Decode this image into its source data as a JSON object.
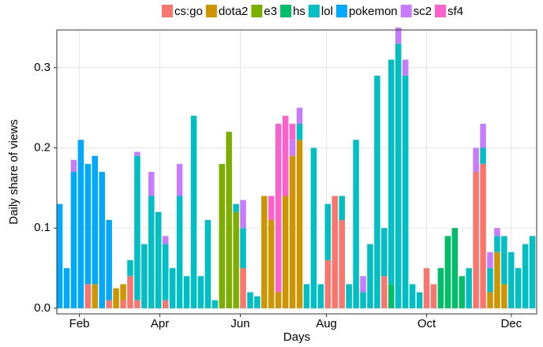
{
  "chart_data": {
    "type": "stacked_bar",
    "x_label": "Days",
    "y_label": "Daily share of views",
    "xlim": [
      0,
      340
    ],
    "ylim": [
      -0.007,
      0.347
    ],
    "xticks": [
      {
        "value": 16,
        "label": "Feb"
      },
      {
        "value": 73,
        "label": "Apr"
      },
      {
        "value": 130,
        "label": "Jun"
      },
      {
        "value": 191,
        "label": "Aug"
      },
      {
        "value": 262,
        "label": "Oct"
      },
      {
        "value": 322,
        "label": "Dec"
      }
    ],
    "yticks": [
      {
        "value": 0,
        "label": "0.0"
      },
      0.1,
      0.2,
      0.3
    ],
    "grid": true,
    "legend": "top",
    "x": [
      2,
      7,
      12,
      17,
      22,
      27,
      32,
      37,
      42,
      47,
      52,
      57,
      62,
      67,
      72,
      77,
      82,
      87,
      92,
      97,
      102,
      107,
      112,
      117,
      122,
      127,
      132,
      137,
      142,
      147,
      152,
      157,
      162,
      167,
      172,
      177,
      182,
      187,
      192,
      197,
      202,
      207,
      212,
      217,
      222,
      227,
      232,
      237,
      242,
      247,
      252,
      257,
      262,
      267,
      272,
      277,
      282,
      287,
      292,
      297,
      302,
      307,
      312,
      317,
      322,
      327,
      332,
      337
    ],
    "series": [
      {
        "name": "cs:go",
        "color": "#F8766D",
        "values": [
          0,
          0,
          0,
          0,
          0.03,
          0,
          0,
          0.01,
          0,
          0.01,
          0.04,
          0.01,
          0,
          0,
          0,
          0.01,
          0,
          0,
          0,
          0,
          0,
          0,
          0,
          0,
          0,
          0,
          0.05,
          0,
          0,
          0,
          0,
          0,
          0,
          0,
          0,
          0,
          0,
          0,
          0.06,
          0.14,
          0.11,
          0,
          0,
          0,
          0,
          0,
          0.04,
          0,
          0,
          0,
          0,
          0,
          0.05,
          0.03,
          0,
          0,
          0,
          0,
          0,
          0.17,
          0.18,
          0,
          0,
          0,
          0,
          0,
          0,
          0
        ]
      },
      {
        "name": "dota2",
        "color": "#CD9600",
        "values": [
          0,
          0,
          0,
          0,
          0,
          0.03,
          0,
          0,
          0.025,
          0.02,
          0,
          0,
          0,
          0,
          0,
          0,
          0,
          0,
          0,
          0,
          0,
          0,
          0,
          0,
          0,
          0,
          0,
          0,
          0,
          0.14,
          0.11,
          0.02,
          0.14,
          0.19,
          0.21,
          0,
          0,
          0,
          0,
          0,
          0,
          0,
          0,
          0,
          0,
          0,
          0,
          0,
          0,
          0,
          0,
          0,
          0,
          0,
          0,
          0,
          0,
          0,
          0,
          0,
          0,
          0.02,
          0.07,
          0.03,
          0,
          0,
          0,
          0
        ]
      },
      {
        "name": "e3",
        "color": "#7CAE00",
        "values": [
          0,
          0,
          0,
          0,
          0,
          0,
          0,
          0,
          0,
          0,
          0,
          0,
          0,
          0,
          0,
          0,
          0,
          0,
          0,
          0,
          0,
          0,
          0,
          0.18,
          0.22,
          0.12,
          0,
          0,
          0,
          0,
          0,
          0,
          0,
          0,
          0,
          0,
          0,
          0,
          0,
          0,
          0,
          0,
          0,
          0,
          0,
          0,
          0,
          0,
          0,
          0,
          0,
          0,
          0,
          0,
          0,
          0,
          0,
          0,
          0,
          0,
          0,
          0,
          0,
          0,
          0,
          0,
          0,
          0
        ]
      },
      {
        "name": "hs",
        "color": "#00BE67",
        "values": [
          0,
          0,
          0,
          0,
          0,
          0,
          0,
          0,
          0,
          0,
          0,
          0,
          0,
          0,
          0,
          0,
          0,
          0,
          0,
          0,
          0,
          0,
          0,
          0,
          0,
          0,
          0,
          0,
          0,
          0,
          0,
          0,
          0,
          0,
          0,
          0,
          0,
          0,
          0,
          0,
          0,
          0,
          0,
          0,
          0,
          0,
          0,
          0.03,
          0,
          0,
          0,
          0,
          0,
          0,
          0.05,
          0.09,
          0.1,
          0.04,
          0,
          0,
          0,
          0,
          0,
          0,
          0,
          0,
          0,
          0
        ]
      },
      {
        "name": "lol",
        "color": "#00BFC4",
        "values": [
          0,
          0,
          0,
          0,
          0,
          0,
          0,
          0,
          0,
          0,
          0.02,
          0.18,
          0.08,
          0.14,
          0.12,
          0.07,
          0.05,
          0.14,
          0.04,
          0.24,
          0.04,
          0.11,
          0.01,
          0,
          0,
          0.01,
          0.05,
          0.02,
          0.015,
          0,
          0,
          0,
          0,
          0,
          0.02,
          0.03,
          0.2,
          0.03,
          0.07,
          0,
          0.03,
          0.03,
          0.21,
          0.02,
          0.08,
          0.29,
          0.06,
          0.28,
          0.33,
          0.29,
          0.03,
          0.02,
          0,
          0,
          0,
          0,
          0,
          0,
          0.05,
          0,
          0.02,
          0.03,
          0.02,
          0.06,
          0.07,
          0.05,
          0.08,
          0.09
        ]
      },
      {
        "name": "pokemon",
        "color": "#00A9FF",
        "values": [
          0.13,
          0.05,
          0.17,
          0.21,
          0.15,
          0.16,
          0.17,
          0.1,
          0,
          0,
          0,
          0,
          0,
          0,
          0,
          0,
          0,
          0,
          0,
          0,
          0,
          0,
          0,
          0,
          0,
          0,
          0,
          0,
          0,
          0,
          0,
          0,
          0,
          0,
          0,
          0,
          0,
          0,
          0,
          0,
          0,
          0,
          0,
          0,
          0,
          0,
          0,
          0,
          0,
          0,
          0,
          0,
          0,
          0,
          0,
          0,
          0,
          0,
          0,
          0,
          0,
          0,
          0,
          0,
          0,
          0,
          0,
          0
        ]
      },
      {
        "name": "sc2",
        "color": "#C77CFF",
        "values": [
          0,
          0,
          0.015,
          0,
          0,
          0,
          0,
          0,
          0,
          0,
          0,
          0.005,
          0,
          0.03,
          0,
          0.01,
          0,
          0.04,
          0,
          0,
          0,
          0,
          0,
          0,
          0,
          0,
          0.035,
          0,
          0,
          0,
          0,
          0,
          0,
          0.02,
          0.02,
          0,
          0,
          0,
          0,
          0,
          0,
          0,
          0,
          0.02,
          0,
          0,
          0,
          0,
          0.02,
          0.02,
          0,
          0,
          0,
          0,
          0,
          0,
          0,
          0,
          0,
          0.03,
          0.03,
          0.02,
          0.01,
          0,
          0,
          0,
          0,
          0
        ]
      },
      {
        "name": "sf4",
        "color": "#FF61CC",
        "values": [
          0,
          0,
          0,
          0,
          0,
          0,
          0,
          0,
          0,
          0,
          0,
          0,
          0,
          0,
          0,
          0,
          0,
          0,
          0,
          0,
          0,
          0,
          0,
          0,
          0,
          0,
          0,
          0,
          0,
          0,
          0.03,
          0.21,
          0.1,
          0.02,
          0,
          0,
          0,
          0,
          0,
          0,
          0,
          0,
          0,
          0,
          0,
          0,
          0,
          0,
          0,
          0,
          0,
          0,
          0,
          0,
          0,
          0,
          0,
          0,
          0,
          0,
          0,
          0,
          0,
          0,
          0,
          0,
          0,
          0
        ]
      }
    ]
  }
}
